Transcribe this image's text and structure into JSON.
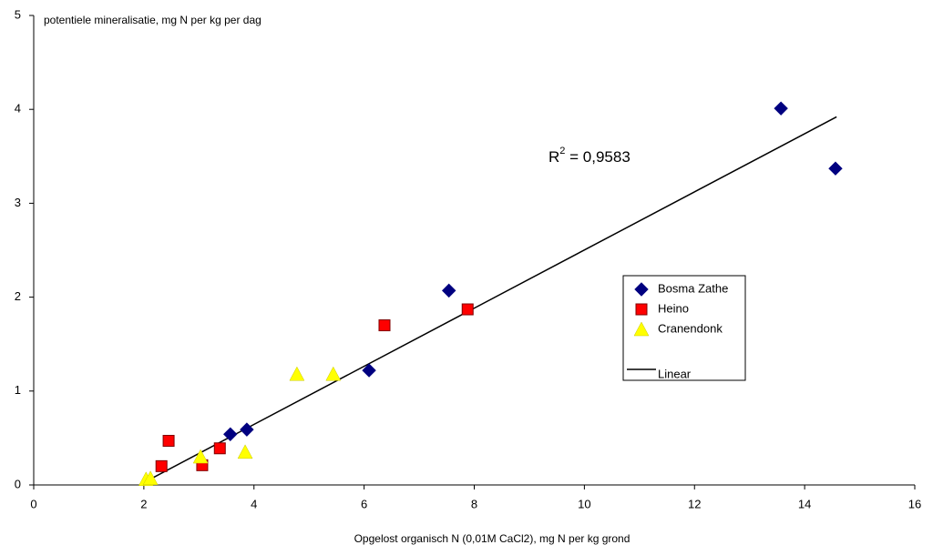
{
  "chart_data": {
    "type": "scatter",
    "y_label": "potentiele mineralisatie, mg N per kg per dag",
    "x_label": "Opgelost organisch N (0,01M CaCl2), mg N per kg grond",
    "xlim": [
      0,
      16
    ],
    "xticks": [
      0,
      2,
      4,
      6,
      8,
      10,
      12,
      14,
      16
    ],
    "ylim": [
      0,
      5
    ],
    "yticks": [
      0,
      1,
      2,
      3,
      4,
      5
    ],
    "grid": false,
    "series": [
      {
        "name": "Bosma Zathe",
        "color": "#000080",
        "marker": "diamond",
        "x": [
          3.57,
          3.87,
          6.09,
          7.54,
          13.57,
          14.56
        ],
        "values": [
          0.54,
          0.59,
          1.22,
          2.07,
          4.01,
          3.37
        ]
      },
      {
        "name": "Heino",
        "color": "#ff0000",
        "marker": "square",
        "x": [
          2.32,
          2.45,
          3.06,
          3.38,
          6.37,
          7.88
        ],
        "values": [
          0.2,
          0.47,
          0.21,
          0.39,
          1.7,
          1.87
        ]
      },
      {
        "name": "Cranendonk",
        "color": "#ffff00",
        "marker": "triangle",
        "x": [
          2.04,
          2.12,
          3.03,
          3.84,
          4.78,
          5.44
        ],
        "values": [
          0.06,
          0.07,
          0.3,
          0.35,
          1.18,
          1.18
        ]
      }
    ],
    "trendline": {
      "name": "Linear",
      "color": "#000000",
      "x": [
        1.95,
        14.58
      ],
      "values": [
        0.01,
        3.92
      ]
    },
    "annotation": {
      "base": "R",
      "sup": "2",
      "rest": " = 0,9583"
    }
  }
}
